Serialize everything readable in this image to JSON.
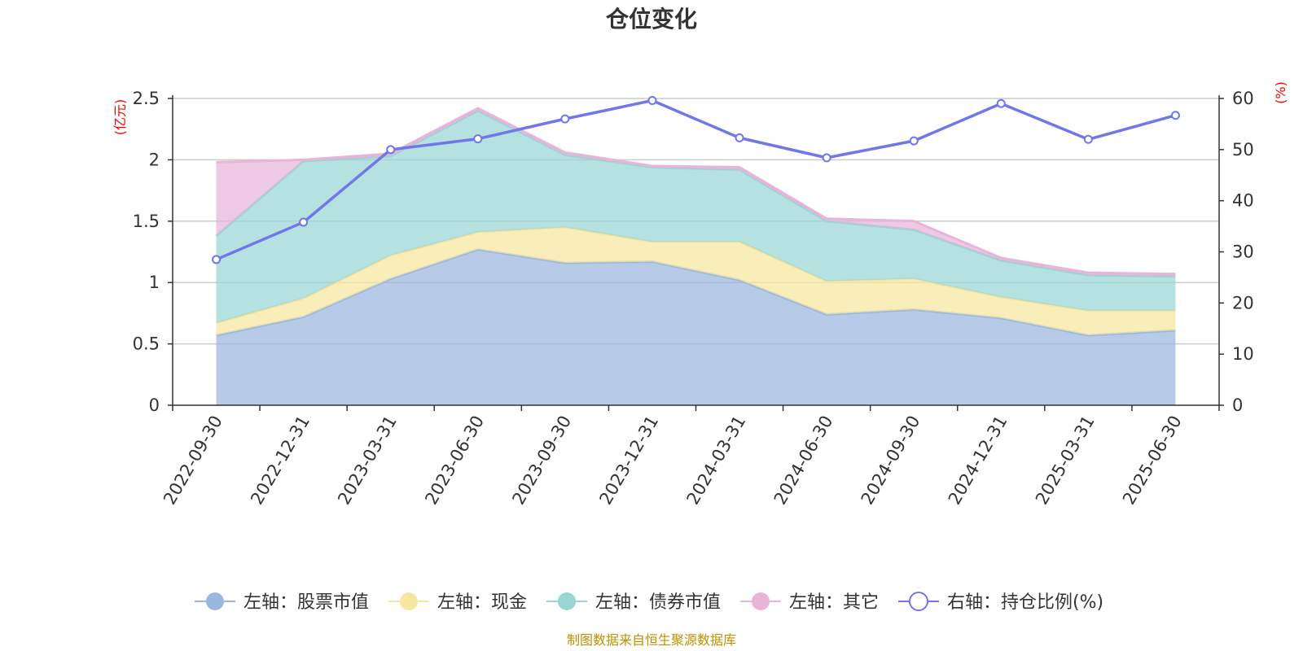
{
  "chart_data": {
    "type": "area",
    "title": "仓位变化",
    "left_unit": "(亿元)",
    "right_unit": "(%)",
    "categories": [
      "2022-09-30",
      "2022-12-31",
      "2023-03-31",
      "2023-06-30",
      "2023-09-30",
      "2023-12-31",
      "2024-03-31",
      "2024-06-30",
      "2024-09-30",
      "2024-12-31",
      "2025-03-31",
      "2025-06-30"
    ],
    "left_axis": {
      "min": 0,
      "max": 2.5,
      "ticks": [
        "0",
        "0.5",
        "1",
        "1.5",
        "2",
        "2.5"
      ]
    },
    "right_axis": {
      "min": 0,
      "max": 60,
      "ticks": [
        "0",
        "10",
        "20",
        "30",
        "40",
        "50",
        "60"
      ]
    },
    "stacked_series": [
      {
        "name": "左轴：股票市值",
        "color": "#9bb7e0",
        "values": [
          0.57,
          0.72,
          1.03,
          1.27,
          1.16,
          1.17,
          1.02,
          0.74,
          0.78,
          0.71,
          0.57,
          0.61
        ]
      },
      {
        "name": "左轴：现金",
        "color": "#f7e6a0",
        "values": [
          0.1,
          0.15,
          0.19,
          0.14,
          0.29,
          0.16,
          0.31,
          0.27,
          0.25,
          0.17,
          0.2,
          0.16
        ]
      },
      {
        "name": "左轴：债券市值",
        "color": "#99d5d5",
        "values": [
          0.71,
          1.12,
          0.81,
          0.99,
          0.59,
          0.61,
          0.59,
          0.49,
          0.4,
          0.3,
          0.29,
          0.28
        ]
      },
      {
        "name": "左轴：其它",
        "color": "#e8b4d8",
        "values": [
          0.6,
          0.01,
          0.02,
          0.02,
          0.02,
          0.01,
          0.02,
          0.02,
          0.07,
          0.02,
          0.02,
          0.02
        ]
      }
    ],
    "line_series": {
      "name": "右轴：持仓比例(%)",
      "color": "#7176ea",
      "values": [
        28.5,
        35.8,
        50.0,
        52.1,
        56.0,
        59.6,
        52.3,
        48.4,
        51.7,
        59.0,
        52.0,
        56.7
      ]
    },
    "legend_position": "bottom",
    "grid": true
  },
  "footer": {
    "source": "制图数据来自恒生聚源数据库"
  }
}
